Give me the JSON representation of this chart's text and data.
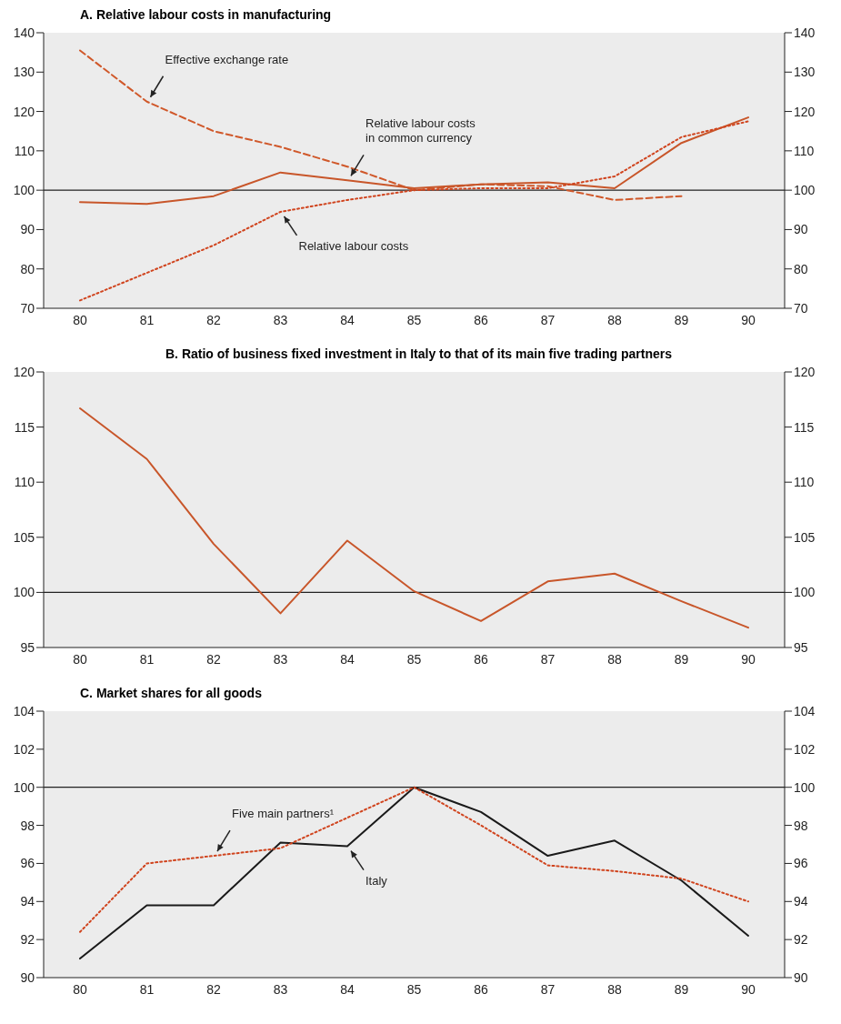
{
  "chart_data": [
    {
      "type": "line",
      "title": "A.  Relative labour costs in manufacturing",
      "categories": [
        "80",
        "81",
        "82",
        "83",
        "84",
        "85",
        "86",
        "87",
        "88",
        "89",
        "90"
      ],
      "series": [
        {
          "color": "#d0582a",
          "line_style": "dashed",
          "values": [
            135.5,
            122.5,
            115,
            111,
            106,
            100,
            101.5,
            101,
            97.5,
            98.5,
            null
          ]
        },
        {
          "color": "#c8562a",
          "line_style": "solid",
          "values": [
            97,
            96.5,
            98.5,
            104.5,
            102.5,
            100.5,
            101.5,
            102,
            100.5,
            112,
            118.5
          ]
        },
        {
          "color": "#d0441e",
          "line_style": "dotted",
          "values": [
            72,
            79,
            86,
            94.5,
            97.5,
            100,
            100.5,
            100.5,
            103.5,
            113.5,
            117.5
          ]
        }
      ],
      "ylim": [
        70,
        140
      ],
      "yticks": [
        70,
        80,
        90,
        100,
        110,
        120,
        130,
        140
      ],
      "y2lim": [
        70,
        140
      ],
      "y2ticks": [
        70,
        80,
        90,
        100,
        110,
        120,
        130,
        140
      ],
      "ref_lines": [
        {
          "axis": "y",
          "value": 100,
          "color": "#222222"
        }
      ],
      "annotations": [
        {
          "text": "Effective exchange rate",
          "x": "81",
          "y": 122.5
        },
        {
          "text": "Relative labour costs\nin common currency",
          "x": "84",
          "y": 102.5
        },
        {
          "text": "Relative labour costs",
          "x": "83",
          "y": 94.5
        }
      ],
      "grid": false,
      "legend": false,
      "marker": "none"
    },
    {
      "type": "line",
      "title": "B.  Ratio of business fixed investment in Italy to that of its main five trading partners",
      "categories": [
        "80",
        "81",
        "82",
        "83",
        "84",
        "85",
        "86",
        "87",
        "88",
        "89",
        "90"
      ],
      "series": [
        {
          "color": "#c8562a",
          "line_style": "solid",
          "values": [
            116.7,
            112.1,
            104.4,
            98.1,
            104.7,
            100.1,
            97.4,
            101,
            101.7,
            99.2,
            96.8
          ]
        }
      ],
      "ylim": [
        95,
        120
      ],
      "yticks": [
        95,
        100,
        105,
        110,
        115,
        120
      ],
      "y2lim": [
        95,
        120
      ],
      "y2ticks": [
        95,
        100,
        105,
        110,
        115,
        120
      ],
      "ref_lines": [
        {
          "axis": "y",
          "value": 100,
          "color": "#222222"
        }
      ],
      "grid": false,
      "legend": false,
      "marker": "none"
    },
    {
      "type": "line",
      "title": "C.  Market shares for all goods",
      "categories": [
        "80",
        "81",
        "82",
        "83",
        "84",
        "85",
        "86",
        "87",
        "88",
        "89",
        "90"
      ],
      "series": [
        {
          "color": "#1a1a1a",
          "line_style": "solid",
          "values": [
            91,
            93.8,
            93.8,
            97.1,
            96.9,
            100,
            98.7,
            96.4,
            97.2,
            95.1,
            92.2
          ]
        },
        {
          "color": "#d0441e",
          "line_style": "dotted",
          "values": [
            92.4,
            96,
            96.4,
            96.8,
            98.4,
            100,
            98,
            95.9,
            95.6,
            95.2,
            94
          ]
        }
      ],
      "ylim": [
        90,
        104
      ],
      "yticks": [
        90,
        92,
        94,
        96,
        98,
        100,
        102,
        104
      ],
      "y2lim": [
        90,
        104
      ],
      "y2ticks": [
        90,
        92,
        94,
        96,
        98,
        100,
        102,
        104
      ],
      "ref_lines": [
        {
          "axis": "y",
          "value": 100,
          "color": "#222222"
        }
      ],
      "annotations": [
        {
          "text": "Five main partners¹",
          "x": "82",
          "y": 96.4
        },
        {
          "text": "Italy",
          "x": "84",
          "y": 96.9
        }
      ],
      "grid": false,
      "legend": false,
      "marker": "none"
    }
  ]
}
